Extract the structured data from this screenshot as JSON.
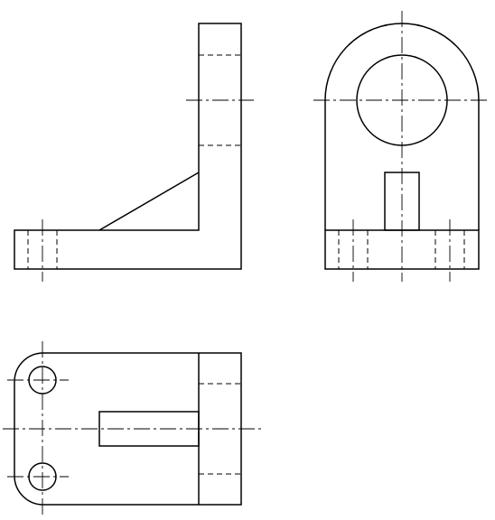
{
  "drawing": {
    "type": "orthographic-projection",
    "views": [
      "front-view",
      "side-view",
      "top-view"
    ],
    "line_color": "#000000",
    "background": "#ffffff"
  }
}
